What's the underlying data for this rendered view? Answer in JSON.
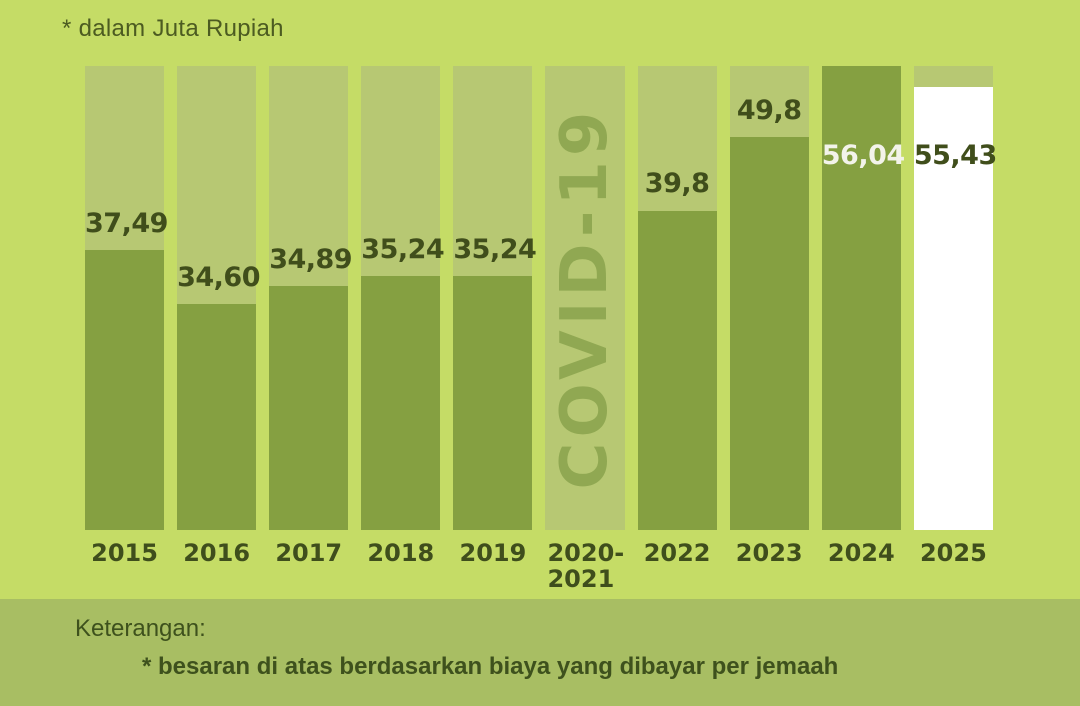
{
  "chart_data": {
    "type": "bar",
    "title_note": "* dalam Juta Rupiah",
    "unit": "Juta Rupiah",
    "ylim": [
      0,
      56.04
    ],
    "grid": false,
    "legend": "none",
    "categories": [
      "2015",
      "2016",
      "2017",
      "2018",
      "2019",
      "2020-2021",
      "2022",
      "2023",
      "2024",
      "2025"
    ],
    "values": [
      37.49,
      34.6,
      34.89,
      35.24,
      35.24,
      null,
      39.8,
      49.8,
      56.04,
      55.43
    ],
    "bars": [
      {
        "id": "2015",
        "year": "2015",
        "value": 37.49,
        "label": "37,49",
        "fill_pct": 60.3,
        "style": "normal",
        "label_inside": false
      },
      {
        "id": "2016",
        "year": "2016",
        "value": 34.6,
        "label": "34,60",
        "fill_pct": 48.7,
        "style": "normal",
        "label_inside": false
      },
      {
        "id": "2017",
        "year": "2017",
        "value": 34.89,
        "label": "34,89",
        "fill_pct": 52.6,
        "style": "normal",
        "label_inside": false
      },
      {
        "id": "2018",
        "year": "2018",
        "value": 35.24,
        "label": "35,24",
        "fill_pct": 54.7,
        "style": "normal",
        "label_inside": false
      },
      {
        "id": "2019",
        "year": "2019",
        "value": 35.24,
        "label": "35,24",
        "fill_pct": 54.7,
        "style": "normal",
        "label_inside": false
      },
      {
        "id": "2020-2021",
        "year": "2020-\n2021",
        "value": null,
        "label": "COVID-19",
        "fill_pct": 0,
        "style": "covid",
        "label_inside": false
      },
      {
        "id": "2022",
        "year": "2022",
        "value": 39.8,
        "label": "39,8",
        "fill_pct": 68.8,
        "style": "normal",
        "label_inside": false
      },
      {
        "id": "2023",
        "year": "2023",
        "value": 49.8,
        "label": "49,8",
        "fill_pct": 84.7,
        "style": "normal",
        "label_inside": false
      },
      {
        "id": "2024",
        "year": "2024",
        "value": 56.04,
        "label": "56,04",
        "fill_pct": 100,
        "style": "inside-light",
        "label_inside": true
      },
      {
        "id": "2025",
        "year": "2025",
        "value": 55.43,
        "label": "55,43",
        "fill_pct": 95.5,
        "style": "white-bar",
        "label_inside": true
      }
    ]
  },
  "footer": {
    "heading": "Keterangan:",
    "note": "* besaran di atas berdasarkan biaya yang dibayar per jemaah"
  },
  "colors": {
    "background": "#c5dc66",
    "bar_track": "#b7c873",
    "bar_fill": "#85a041",
    "bar_white": "#ffffff",
    "covid_text": "#90a852",
    "label_dark": "#404e1b",
    "label_light": "#f3f3ea",
    "footer_band": "#a8be63",
    "footer_text": "#3e511d"
  }
}
